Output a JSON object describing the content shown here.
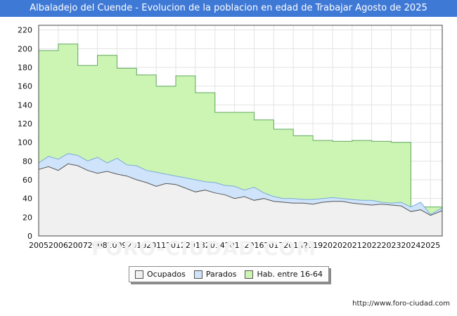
{
  "title": "Albaladejo del Cuende - Evolucion de la poblacion en edad de Trabajar Agosto de 2025",
  "watermark": "FORO-CIUDAD.COM",
  "source": "http://www.foro-ciudad.com",
  "legend": [
    {
      "label": "Ocupados",
      "color": "#f0f0f0"
    },
    {
      "label": "Parados",
      "color": "#cfe4fb"
    },
    {
      "label": "Hab. entre 16-64",
      "color": "#ccf5b3"
    }
  ],
  "chart_data": {
    "type": "area",
    "title": "Albaladejo del Cuende - Evolucion de la poblacion en edad de Trabajar Agosto de 2025",
    "xlabel": "",
    "ylabel": "",
    "xlim": [
      2005,
      2025.6
    ],
    "ylim": [
      0,
      225
    ],
    "yticks": [
      0,
      20,
      40,
      60,
      80,
      100,
      120,
      140,
      160,
      180,
      200,
      220
    ],
    "xticks": [
      "2005",
      "2006",
      "2007",
      "2008",
      "2009",
      "2010",
      "2011",
      "2012",
      "2013",
      "2014",
      "2015",
      "2016",
      "2017",
      "2018",
      "2019",
      "2020",
      "2021",
      "2022",
      "2023",
      "2024",
      "2025"
    ],
    "grid": true,
    "legend_position": "bottom",
    "series": [
      {
        "name": "Hab. entre 16-64",
        "color": "#ccf5b3",
        "line": "#5fa85f",
        "note": "annual step values",
        "x": [
          2005,
          2006,
          2007,
          2008,
          2009,
          2010,
          2011,
          2012,
          2013,
          2014,
          2015,
          2016,
          2017,
          2018,
          2019,
          2020,
          2021,
          2022,
          2023,
          2024
        ],
        "values": [
          198,
          205,
          182,
          193,
          179,
          172,
          160,
          171,
          153,
          132,
          132,
          124,
          114,
          107,
          102,
          101,
          102,
          101,
          100,
          31
        ]
      },
      {
        "name": "Parados",
        "color": "#cfe4fb",
        "line": "#7aaad8",
        "note": "top of stacked band = Ocupados + Parados",
        "x": [
          2005,
          2005.5,
          2006,
          2006.5,
          2007,
          2007.5,
          2008,
          2008.5,
          2009,
          2009.5,
          2010,
          2010.5,
          2011,
          2011.5,
          2012,
          2012.5,
          2013,
          2013.5,
          2014,
          2014.5,
          2015,
          2015.5,
          2016,
          2016.5,
          2017,
          2017.5,
          2018,
          2018.5,
          2019,
          2019.5,
          2020,
          2020.5,
          2021,
          2021.5,
          2022,
          2022.5,
          2023,
          2023.5,
          2024,
          2024.5,
          2025,
          2025.6
        ],
        "values": [
          78,
          85,
          82,
          88,
          86,
          80,
          84,
          78,
          83,
          76,
          75,
          70,
          68,
          66,
          64,
          62,
          60,
          58,
          57,
          54,
          53,
          49,
          52,
          46,
          42,
          40,
          40,
          39,
          39,
          40,
          41,
          40,
          39,
          38,
          38,
          36,
          35,
          36,
          31,
          36,
          23,
          30
        ]
      },
      {
        "name": "Ocupados",
        "color": "#f0f0f0",
        "line": "#555555",
        "x": [
          2005,
          2005.5,
          2006,
          2006.5,
          2007,
          2007.5,
          2008,
          2008.5,
          2009,
          2009.5,
          2010,
          2010.5,
          2011,
          2011.5,
          2012,
          2012.5,
          2013,
          2013.5,
          2014,
          2014.5,
          2015,
          2015.5,
          2016,
          2016.5,
          2017,
          2017.5,
          2018,
          2018.5,
          2019,
          2019.5,
          2020,
          2020.5,
          2021,
          2021.5,
          2022,
          2022.5,
          2023,
          2023.5,
          2024,
          2024.5,
          2025,
          2025.6
        ],
        "values": [
          71,
          74,
          70,
          77,
          75,
          70,
          67,
          69,
          66,
          64,
          60,
          57,
          53,
          56,
          55,
          51,
          47,
          49,
          46,
          44,
          40,
          42,
          38,
          40,
          37,
          36,
          35,
          35,
          34,
          36,
          37,
          37,
          35,
          34,
          33,
          34,
          33,
          32,
          26,
          28,
          22,
          27
        ]
      }
    ]
  }
}
